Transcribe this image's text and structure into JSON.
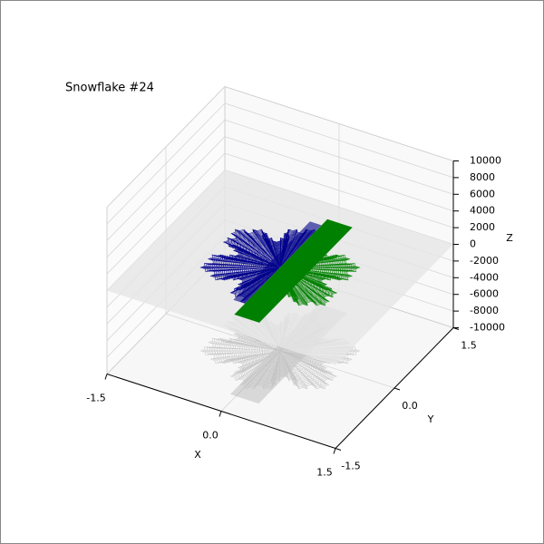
{
  "chart_data": {
    "type": "contour3d",
    "title": "Snowflake #24",
    "x_label": "X",
    "y_label": "Y",
    "z_label": "Z",
    "xlim": [
      -1.5,
      1.5
    ],
    "ylim": [
      -1.5,
      1.5
    ],
    "zlim": [
      -10000,
      10000
    ],
    "xticks": [
      -1.5,
      {
        "value": 0,
        "label": "0.0"
      },
      1.5
    ],
    "yticks": [
      -1.5,
      {
        "value": 0,
        "label": "0.0"
      },
      1.5
    ],
    "zticks": [
      -10000,
      -8000,
      -6000,
      -4000,
      -2000,
      0,
      2000,
      4000,
      6000,
      8000,
      10000
    ],
    "colors": [
      "#00008b",
      "#008000"
    ],
    "shadow_color": "#9a9a9a",
    "grid": true
  }
}
